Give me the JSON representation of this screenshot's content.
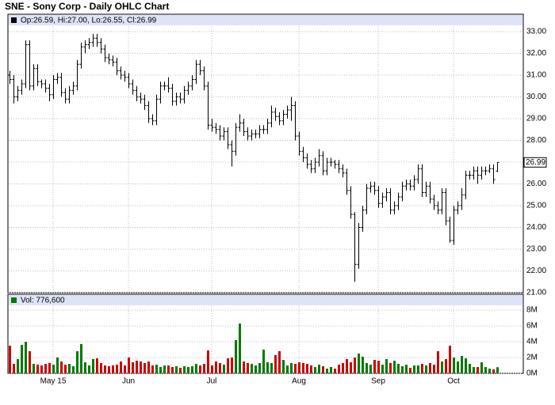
{
  "chart_data": {
    "type": "ohlc",
    "title": "SNE - Sony Corp - Daily OHLC Chart",
    "price_legend": "Op:26.59, Hi:27.00, Lo:26.55, Cl:26.99",
    "volume_legend": "Vol: 776,600",
    "categories": [
      null,
      null,
      null,
      null,
      null,
      null,
      null,
      null,
      null,
      null,
      null,
      "May 15",
      null,
      null,
      null,
      null,
      null,
      null,
      null,
      null,
      null,
      null,
      null,
      null,
      null,
      null,
      null,
      null,
      null,
      null,
      "Jun",
      null,
      null,
      null,
      null,
      null,
      null,
      null,
      null,
      null,
      null,
      null,
      null,
      null,
      null,
      null,
      null,
      null,
      null,
      null,
      null,
      "Jul",
      null,
      null,
      null,
      null,
      null,
      null,
      null,
      null,
      null,
      null,
      null,
      null,
      null,
      null,
      null,
      null,
      null,
      null,
      null,
      null,
      null,
      "Aug",
      null,
      null,
      null,
      null,
      null,
      null,
      null,
      null,
      null,
      null,
      null,
      null,
      null,
      null,
      null,
      null,
      null,
      null,
      null,
      "Sep",
      null,
      null,
      null,
      null,
      null,
      null,
      null,
      null,
      null,
      null,
      null,
      null,
      null,
      null,
      null,
      null,
      null,
      null,
      "Oct",
      null,
      null,
      null,
      null,
      null,
      null,
      null,
      null,
      null,
      null,
      null
    ],
    "ohlc": [
      [
        31.0,
        31.2,
        30.6,
        30.8
      ],
      [
        30.8,
        31.0,
        29.7,
        30.0
      ],
      [
        30.0,
        30.5,
        29.8,
        30.3
      ],
      [
        30.3,
        30.8,
        30.1,
        30.6
      ],
      [
        30.6,
        32.6,
        30.4,
        32.4
      ],
      [
        32.4,
        32.6,
        30.3,
        30.5
      ],
      [
        30.5,
        31.5,
        30.3,
        31.3
      ],
      [
        31.3,
        31.5,
        30.5,
        30.7
      ],
      [
        30.7,
        30.8,
        30.4,
        30.6
      ],
      [
        30.6,
        30.8,
        30.2,
        30.4
      ],
      [
        30.4,
        30.6,
        29.8,
        30.1
      ],
      [
        30.1,
        31.0,
        29.9,
        30.8
      ],
      [
        30.8,
        31.1,
        30.6,
        30.9
      ],
      [
        30.9,
        31.1,
        30.0,
        30.2
      ],
      [
        30.2,
        30.4,
        29.7,
        29.9
      ],
      [
        29.9,
        30.5,
        29.7,
        30.3
      ],
      [
        30.3,
        30.7,
        30.1,
        30.5
      ],
      [
        30.5,
        31.7,
        30.3,
        31.5
      ],
      [
        31.5,
        32.5,
        31.3,
        32.3
      ],
      [
        32.3,
        32.6,
        32.0,
        32.4
      ],
      [
        32.4,
        32.7,
        32.2,
        32.5
      ],
      [
        32.5,
        32.9,
        32.3,
        32.7
      ],
      [
        32.7,
        32.9,
        32.3,
        32.5
      ],
      [
        32.5,
        32.7,
        32.0,
        32.2
      ],
      [
        32.2,
        32.4,
        31.6,
        31.8
      ],
      [
        31.8,
        32.0,
        31.5,
        31.7
      ],
      [
        31.7,
        31.9,
        31.4,
        31.6
      ],
      [
        31.6,
        31.8,
        31.0,
        31.2
      ],
      [
        31.2,
        31.4,
        30.8,
        31.0
      ],
      [
        31.0,
        31.2,
        30.7,
        30.9
      ],
      [
        30.9,
        31.1,
        30.4,
        30.6
      ],
      [
        30.6,
        30.8,
        30.1,
        30.3
      ],
      [
        30.3,
        30.5,
        29.8,
        30.0
      ],
      [
        30.0,
        30.2,
        29.7,
        29.9
      ],
      [
        29.9,
        30.1,
        29.4,
        29.6
      ],
      [
        29.6,
        29.8,
        28.8,
        29.0
      ],
      [
        29.0,
        29.2,
        28.7,
        28.9
      ],
      [
        28.9,
        30.1,
        28.7,
        29.9
      ],
      [
        29.9,
        30.7,
        29.7,
        30.5
      ],
      [
        30.5,
        30.7,
        30.3,
        30.5
      ],
      [
        30.5,
        30.9,
        30.2,
        30.4
      ],
      [
        30.4,
        30.6,
        29.6,
        29.8
      ],
      [
        29.8,
        30.2,
        29.6,
        30.0
      ],
      [
        30.0,
        30.2,
        29.7,
        29.9
      ],
      [
        29.9,
        30.5,
        29.7,
        30.3
      ],
      [
        30.3,
        30.7,
        30.1,
        30.5
      ],
      [
        30.5,
        31.0,
        30.3,
        30.8
      ],
      [
        30.8,
        31.7,
        30.6,
        31.5
      ],
      [
        31.5,
        31.7,
        31.0,
        31.2
      ],
      [
        31.2,
        31.4,
        30.3,
        30.5
      ],
      [
        30.5,
        30.7,
        28.5,
        28.7
      ],
      [
        28.7,
        29.0,
        28.4,
        28.6
      ],
      [
        28.6,
        28.8,
        28.3,
        28.5
      ],
      [
        28.5,
        28.7,
        28.0,
        28.2
      ],
      [
        28.2,
        28.6,
        28.0,
        28.4
      ],
      [
        28.4,
        28.6,
        27.6,
        27.8
      ],
      [
        27.8,
        28.0,
        26.8,
        27.5
      ],
      [
        27.5,
        28.8,
        27.3,
        28.6
      ],
      [
        28.6,
        29.2,
        28.4,
        28.8
      ],
      [
        28.8,
        29.0,
        28.2,
        28.4
      ],
      [
        28.4,
        28.6,
        28.0,
        28.2
      ],
      [
        28.2,
        28.5,
        28.0,
        28.3
      ],
      [
        28.3,
        28.5,
        28.1,
        28.3
      ],
      [
        28.3,
        28.7,
        28.1,
        28.5
      ],
      [
        28.5,
        28.7,
        28.3,
        28.5
      ],
      [
        28.5,
        29.0,
        28.3,
        28.8
      ],
      [
        28.8,
        29.6,
        28.6,
        29.3
      ],
      [
        29.3,
        29.5,
        28.9,
        29.1
      ],
      [
        29.1,
        29.3,
        28.7,
        28.9
      ],
      [
        28.9,
        29.4,
        28.7,
        29.2
      ],
      [
        29.2,
        29.6,
        29.0,
        29.4
      ],
      [
        29.4,
        30.0,
        28.9,
        29.6
      ],
      [
        29.6,
        29.8,
        28.0,
        28.2
      ],
      [
        28.2,
        28.4,
        27.3,
        27.5
      ],
      [
        27.5,
        27.7,
        27.0,
        27.2
      ],
      [
        27.2,
        27.4,
        26.7,
        26.9
      ],
      [
        26.9,
        27.1,
        26.5,
        26.7
      ],
      [
        26.7,
        27.2,
        26.5,
        27.0
      ],
      [
        27.0,
        27.6,
        26.8,
        27.3
      ],
      [
        27.3,
        27.5,
        26.4,
        26.6
      ],
      [
        26.6,
        27.2,
        26.4,
        27.0
      ],
      [
        27.0,
        27.2,
        26.8,
        27.0
      ],
      [
        27.0,
        27.1,
        26.7,
        26.9
      ],
      [
        26.9,
        27.1,
        26.5,
        26.7
      ],
      [
        26.7,
        26.9,
        26.3,
        26.5
      ],
      [
        26.5,
        26.7,
        25.5,
        25.7
      ],
      [
        25.7,
        25.9,
        24.4,
        24.6
      ],
      [
        24.6,
        24.7,
        21.5,
        22.3
      ],
      [
        22.3,
        24.2,
        22.1,
        24.0
      ],
      [
        24.0,
        25.0,
        23.8,
        24.8
      ],
      [
        24.8,
        26.0,
        24.6,
        25.8
      ],
      [
        25.8,
        26.1,
        25.6,
        25.9
      ],
      [
        25.9,
        26.1,
        25.5,
        25.7
      ],
      [
        25.7,
        25.9,
        24.9,
        25.1
      ],
      [
        25.1,
        25.6,
        24.9,
        25.4
      ],
      [
        25.4,
        25.8,
        25.2,
        25.6
      ],
      [
        25.6,
        25.8,
        24.6,
        24.8
      ],
      [
        24.8,
        25.2,
        24.6,
        25.0
      ],
      [
        25.0,
        25.6,
        24.8,
        25.4
      ],
      [
        25.4,
        26.1,
        25.2,
        25.9
      ],
      [
        25.9,
        26.2,
        25.7,
        26.0
      ],
      [
        26.0,
        26.2,
        25.7,
        25.9
      ],
      [
        25.9,
        26.4,
        25.7,
        26.2
      ],
      [
        26.2,
        26.9,
        26.0,
        26.7
      ],
      [
        26.7,
        26.9,
        25.4,
        25.6
      ],
      [
        25.6,
        26.1,
        25.4,
        25.9
      ],
      [
        25.9,
        26.1,
        25.1,
        25.3
      ],
      [
        25.3,
        25.5,
        24.8,
        25.0
      ],
      [
        25.0,
        25.2,
        24.6,
        24.8
      ],
      [
        24.8,
        25.8,
        24.6,
        25.6
      ],
      [
        25.6,
        25.8,
        24.1,
        24.3
      ],
      [
        24.3,
        24.5,
        23.3,
        23.4
      ],
      [
        23.4,
        25.0,
        23.2,
        24.8
      ],
      [
        24.8,
        25.2,
        24.6,
        25.0
      ],
      [
        25.0,
        25.8,
        24.8,
        25.5
      ],
      [
        25.5,
        26.6,
        25.3,
        26.4
      ],
      [
        26.4,
        26.6,
        26.2,
        26.4
      ],
      [
        26.4,
        26.8,
        26.2,
        26.6
      ],
      [
        26.6,
        26.8,
        26.0,
        26.4
      ],
      [
        26.4,
        26.8,
        26.2,
        26.6
      ],
      [
        26.6,
        26.8,
        26.4,
        26.6
      ],
      [
        26.6,
        26.9,
        26.5,
        26.7
      ],
      [
        26.7,
        26.9,
        26.0,
        26.2
      ],
      [
        26.59,
        27.0,
        26.55,
        26.99
      ]
    ],
    "volume": [
      3.5,
      1.2,
      1.8,
      3.6,
      4.0,
      2.8,
      1.2,
      1.1,
      1.0,
      1.2,
      1.3,
      1.1,
      2.0,
      1.5,
      1.1,
      1.2,
      0.9,
      2.8,
      3.7,
      1.4,
      1.0,
      1.8,
      1.9,
      1.3,
      1.0,
      0.9,
      1.0,
      1.1,
      1.5,
      1.0,
      2.0,
      1.4,
      1.6,
      1.5,
      1.3,
      1.5,
      1.0,
      1.1,
      0.8,
      1.0,
      1.0,
      0.8,
      0.9,
      0.7,
      0.9,
      0.8,
      0.9,
      1.2,
      1.0,
      1.2,
      2.9,
      1.0,
      1.5,
      1.3,
      1.1,
      1.9,
      2.0,
      4.2,
      6.3,
      1.5,
      1.3,
      1.2,
      1.0,
      1.3,
      3.0,
      1.4,
      1.3,
      2.3,
      2.8,
      1.7,
      1.0,
      1.3,
      1.2,
      1.4,
      1.3,
      1.2,
      1.0,
      0.8,
      1.1,
      0.9,
      0.6,
      0.8,
      0.6,
      1.1,
      1.3,
      1.8,
      1.4,
      2.0,
      2.5,
      2.1,
      1.3,
      1.1,
      1.7,
      1.6,
      1.1,
      1.8,
      1.3,
      1.6,
      1.2,
      0.9,
      1.1,
      0.7,
      1.0,
      1.0,
      1.2,
      1.0,
      1.3,
      1.1,
      2.8,
      1.5,
      1.8,
      3.5,
      2.0,
      1.5,
      2.2,
      1.9,
      1.2,
      0.8,
      0.8,
      1.4,
      0.8,
      0.6,
      0.5,
      0.7766
    ],
    "ylim": [
      21,
      33
    ],
    "yticks": [
      {
        "value": 21,
        "label": "21.00"
      },
      {
        "value": 22,
        "label": "22.00"
      },
      {
        "value": 23,
        "label": "23.00"
      },
      {
        "value": 24,
        "label": "24.00"
      },
      {
        "value": 25,
        "label": "25.00"
      },
      {
        "value": 26,
        "label": "26.00"
      },
      {
        "value": 27,
        "label": "27.00"
      },
      {
        "value": 28,
        "label": "28.00"
      },
      {
        "value": 29,
        "label": "29.00"
      },
      {
        "value": 30,
        "label": "30.00"
      },
      {
        "value": 31,
        "label": "31.00"
      },
      {
        "value": 32,
        "label": "32.00"
      },
      {
        "value": 33,
        "label": "33.00"
      }
    ],
    "y2lim": [
      0,
      8
    ],
    "y2ticks": [
      {
        "value": 0,
        "label": "0M"
      },
      {
        "value": 2,
        "label": "2M"
      },
      {
        "value": 4,
        "label": "4M"
      },
      {
        "value": 6,
        "label": "6M"
      },
      {
        "value": 8,
        "label": "8M"
      }
    ],
    "color": "#000000",
    "up_color": "#007a00",
    "down_color": "#cc0000",
    "grid": true
  }
}
